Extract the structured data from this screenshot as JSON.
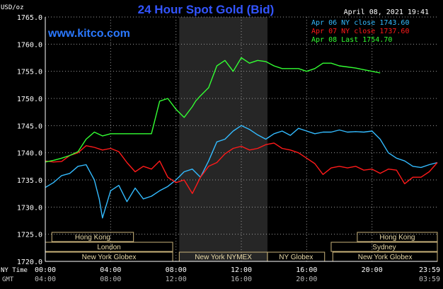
{
  "chart_data": {
    "type": "line",
    "title": "24 Hour Spot Gold (Bid)",
    "ylabel": "USD/oz",
    "datetime": "April 08, 2021 19:41",
    "watermark": "www.kitco.com",
    "ylim": [
      1720,
      1765
    ],
    "y_ticks": [
      "1720.0",
      "1725.0",
      "1730.0",
      "1735.0",
      "1740.0",
      "1745.0",
      "1750.0",
      "1755.0",
      "1760.0",
      "1765.0"
    ],
    "x_ticks_ny": [
      "00:00",
      "04:00",
      "08:00",
      "12:00",
      "16:00",
      "20:00",
      "23:59"
    ],
    "x_ticks_gmt": [
      "04:00",
      "08:00",
      "12:00",
      "16:00",
      "20:00",
      "",
      "03:59"
    ],
    "x_row_labels": {
      "ny": "NY Time",
      "gmt": "GMT"
    },
    "legend_position": "top-right",
    "series": [
      {
        "legend": "Apr 06 NY close 1743.60",
        "color": "#33bbff",
        "x": [
          0,
          0.5,
          1,
          1.5,
          2,
          2.5,
          3,
          3.3,
          3.5,
          3.8,
          4,
          4.5,
          5,
          5.5,
          6,
          6.5,
          7,
          7.5,
          8,
          8.5,
          9,
          9.5,
          10,
          10.5,
          11,
          11.5,
          12,
          12.5,
          13,
          13.5,
          14,
          14.5,
          15,
          15.5,
          16,
          16.5,
          17,
          17.5,
          18,
          18.5,
          19,
          19.5,
          20,
          20.5,
          21,
          21.5,
          22,
          22.5,
          23,
          23.5,
          24
        ],
        "y": [
          1733.6,
          1734.5,
          1735.8,
          1736.2,
          1737.5,
          1737.8,
          1735,
          1731.5,
          1728,
          1731,
          1733,
          1734,
          1731,
          1733.5,
          1731.5,
          1732,
          1733,
          1733.8,
          1735,
          1736.5,
          1737,
          1735.5,
          1738.5,
          1742,
          1742.5,
          1744,
          1745,
          1744.3,
          1743.3,
          1742.5,
          1743.5,
          1744,
          1743.2,
          1744.5,
          1744,
          1743.5,
          1743.8,
          1743.8,
          1744.2,
          1743.8,
          1743.9,
          1743.8,
          1744,
          1742.5,
          1740,
          1739,
          1738.5,
          1737.5,
          1737.3,
          1737.8,
          1738.2
        ]
      },
      {
        "legend": "Apr 07 NY close 1737.60",
        "color": "#ff1a1a",
        "x": [
          0,
          0.5,
          1,
          1.5,
          2,
          2.5,
          3,
          3.5,
          4,
          4.5,
          5,
          5.5,
          6,
          6.5,
          7,
          7.5,
          8,
          8.5,
          9,
          9.5,
          10,
          10.5,
          11,
          11.5,
          12,
          12.5,
          13,
          13.5,
          14,
          14.5,
          15,
          15.5,
          16,
          16.5,
          17,
          17.5,
          18,
          18.5,
          19,
          19.5,
          20,
          20.5,
          21,
          21.5,
          22,
          22.5,
          23,
          23.5,
          24
        ],
        "y": [
          1738.5,
          1738.3,
          1738.4,
          1739.5,
          1740,
          1741.3,
          1741,
          1740.5,
          1740.8,
          1740.2,
          1738.2,
          1736.5,
          1737.5,
          1737,
          1738.5,
          1735.5,
          1734.5,
          1735,
          1732.5,
          1735.5,
          1737.5,
          1738.2,
          1739.8,
          1740.8,
          1741.2,
          1740.5,
          1740.8,
          1741.5,
          1741.8,
          1740.8,
          1740.5,
          1740,
          1739,
          1738,
          1736,
          1737.2,
          1737.5,
          1737.2,
          1737.5,
          1736.8,
          1737,
          1736.2,
          1737,
          1736.8,
          1734.3,
          1735.5,
          1735.5,
          1736.5,
          1738.2
        ]
      },
      {
        "legend": "Apr 08 Last 1754.70",
        "color": "#33ff33",
        "x": [
          0,
          0.5,
          1,
          1.5,
          2,
          2.5,
          3,
          3.5,
          4,
          4.5,
          5,
          5.5,
          6,
          6.5,
          7,
          7.5,
          8,
          8.5,
          9,
          9.2,
          9.5,
          10,
          10.5,
          11,
          11.5,
          12,
          12.5,
          13,
          13.5,
          14,
          14.5,
          15,
          15.5,
          16,
          16.5,
          17,
          17.5,
          18,
          18.5,
          19,
          19.5,
          20,
          20.5
        ],
        "y": [
          1738.3,
          1738.6,
          1739,
          1739.5,
          1740.2,
          1742.5,
          1743.8,
          1743.1,
          1743.5,
          1743.5,
          1743.5,
          1743.5,
          1743.5,
          1743.5,
          1749.5,
          1750,
          1748,
          1746.5,
          1748.5,
          1749.5,
          1750.5,
          1752,
          1756,
          1757,
          1755,
          1757.5,
          1756.5,
          1757,
          1756.8,
          1756,
          1755.5,
          1755.5,
          1755.5,
          1755,
          1755.5,
          1756.5,
          1756.5,
          1756,
          1755.8,
          1755.6,
          1755.3,
          1755,
          1754.7
        ]
      }
    ],
    "sessions": [
      {
        "label": "Hong Kong",
        "row": 0,
        "start": 0.4,
        "end": 5.4
      },
      {
        "label": "Hong Kong",
        "row": 0,
        "start": 19.1,
        "end": 24
      },
      {
        "label": "London",
        "row": 1,
        "start": 0,
        "end": 7.8
      },
      {
        "label": "Sydney",
        "row": 1,
        "start": 17.5,
        "end": 24
      },
      {
        "label": "New York Globex",
        "row": 2,
        "start": 0,
        "end": 7.8
      },
      {
        "label": "New York NYMEX",
        "row": 2,
        "start": 8.2,
        "end": 13.6
      },
      {
        "label": "NY Globex",
        "row": 2,
        "start": 13.6,
        "end": 17.1
      },
      {
        "label": "New York Globex",
        "row": 2,
        "start": 17.6,
        "end": 24
      }
    ],
    "shaded_region": {
      "start": 8.2,
      "end": 13.6
    }
  }
}
